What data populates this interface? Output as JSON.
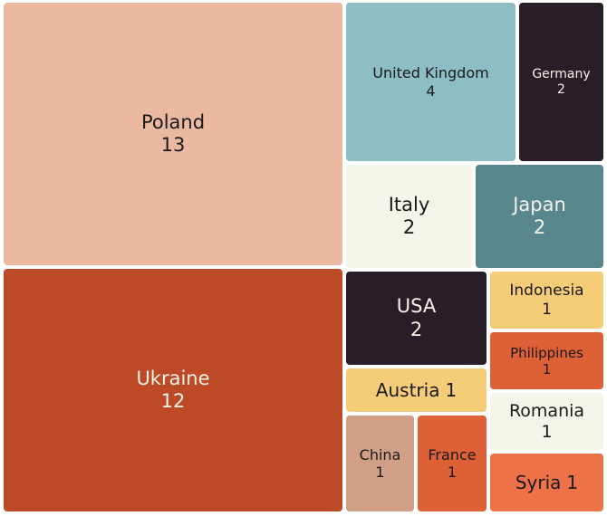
{
  "chart_data": {
    "type": "treemap",
    "title": "",
    "items": [
      {
        "name": "Poland",
        "value": "13",
        "color": "#ebb9a2",
        "text_color": "#1a1a1a"
      },
      {
        "name": "Ukraine",
        "value": "12",
        "color": "#bc4a27",
        "text_color": "#f7f2e8"
      },
      {
        "name": "United Kingdom",
        "value": "4",
        "color": "#8dbec6",
        "text_color": "#1a1a1a"
      },
      {
        "name": "Germany",
        "value": "2",
        "color": "#271e27",
        "text_color": "#f7f2e8"
      },
      {
        "name": "Italy",
        "value": "2",
        "color": "#f5f4e9",
        "text_color": "#1a1a1a"
      },
      {
        "name": "Japan",
        "value": "2",
        "color": "#57878c",
        "text_color": "#f7f2e8"
      },
      {
        "name": "USA",
        "value": "2",
        "color": "#271e27",
        "text_color": "#f7f2e8"
      },
      {
        "name": "Indonesia",
        "value": "1",
        "color": "#f5cc78",
        "text_color": "#1a1a1a"
      },
      {
        "name": "Philippines",
        "value": "1",
        "color": "#de6037",
        "text_color": "#1a1a1a"
      },
      {
        "name": "Austria",
        "value": "1",
        "color": "#f5cc78",
        "text_color": "#1a1a1a"
      },
      {
        "name": "Romania",
        "value": "1",
        "color": "#f5f4e9",
        "text_color": "#1a1a1a"
      },
      {
        "name": "China",
        "value": "1",
        "color": "#d19e87",
        "text_color": "#1a1a1a"
      },
      {
        "name": "France",
        "value": "1",
        "color": "#de6037",
        "text_color": "#1a1a1a"
      },
      {
        "name": "Syria",
        "value": "1",
        "color": "#ed7248",
        "text_color": "#1a1a1a"
      }
    ]
  }
}
